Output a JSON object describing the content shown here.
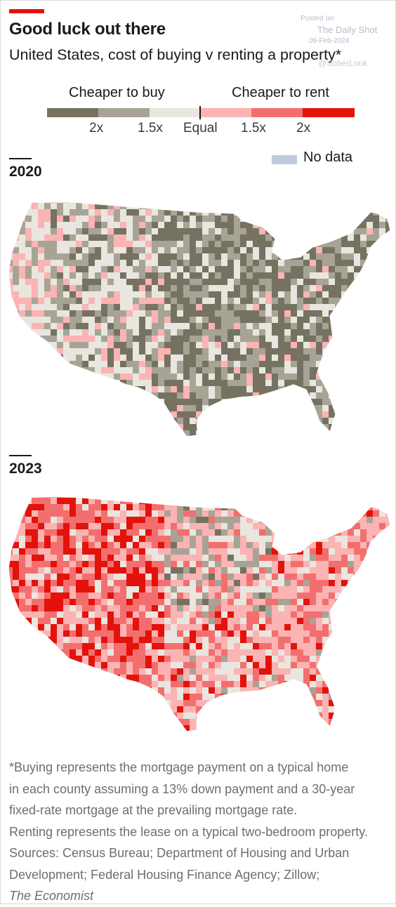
{
  "header": {
    "title": "Good luck out there",
    "subtitle": "United States, cost of buying v renting a property*"
  },
  "watermark": {
    "posted_on": "Posted on",
    "source": "The Daily Shot",
    "date": "09-Feb-2024",
    "handle": "@SoberLook"
  },
  "legend": {
    "buy_label": "Cheaper to buy",
    "rent_label": "Cheaper to rent",
    "ticks": [
      "2x",
      "1.5x",
      "Equal",
      "1.5x",
      "2x"
    ],
    "no_data_label": "No data",
    "colors": {
      "buy_2x": "#767262",
      "buy_1_5x": "#a7a496",
      "equal": "#e9e6df",
      "rent_1_5x": "#fbb3b3",
      "rent_2x": "#f36f6f",
      "rent_max": "#e3120b",
      "no_data": "#bfcadc"
    }
  },
  "maps": [
    {
      "year": "2020",
      "dominant_category": "cheaper to buy"
    },
    {
      "year": "2023",
      "dominant_category": "cheaper to rent"
    }
  ],
  "footnote": {
    "lines": [
      "*Buying represents the mortgage payment on a typical home",
      "in each county assuming a 13% down payment and a 30-year",
      "fixed-rate mortgage at the prevailing mortgage rate.",
      "Renting represents the lease on a typical two-bedroom property.",
      "Sources: Census Bureau; Department of Housing and Urban",
      "Development; Federal Housing Finance Agency; Zillow;"
    ],
    "publisher": "The Economist"
  }
}
